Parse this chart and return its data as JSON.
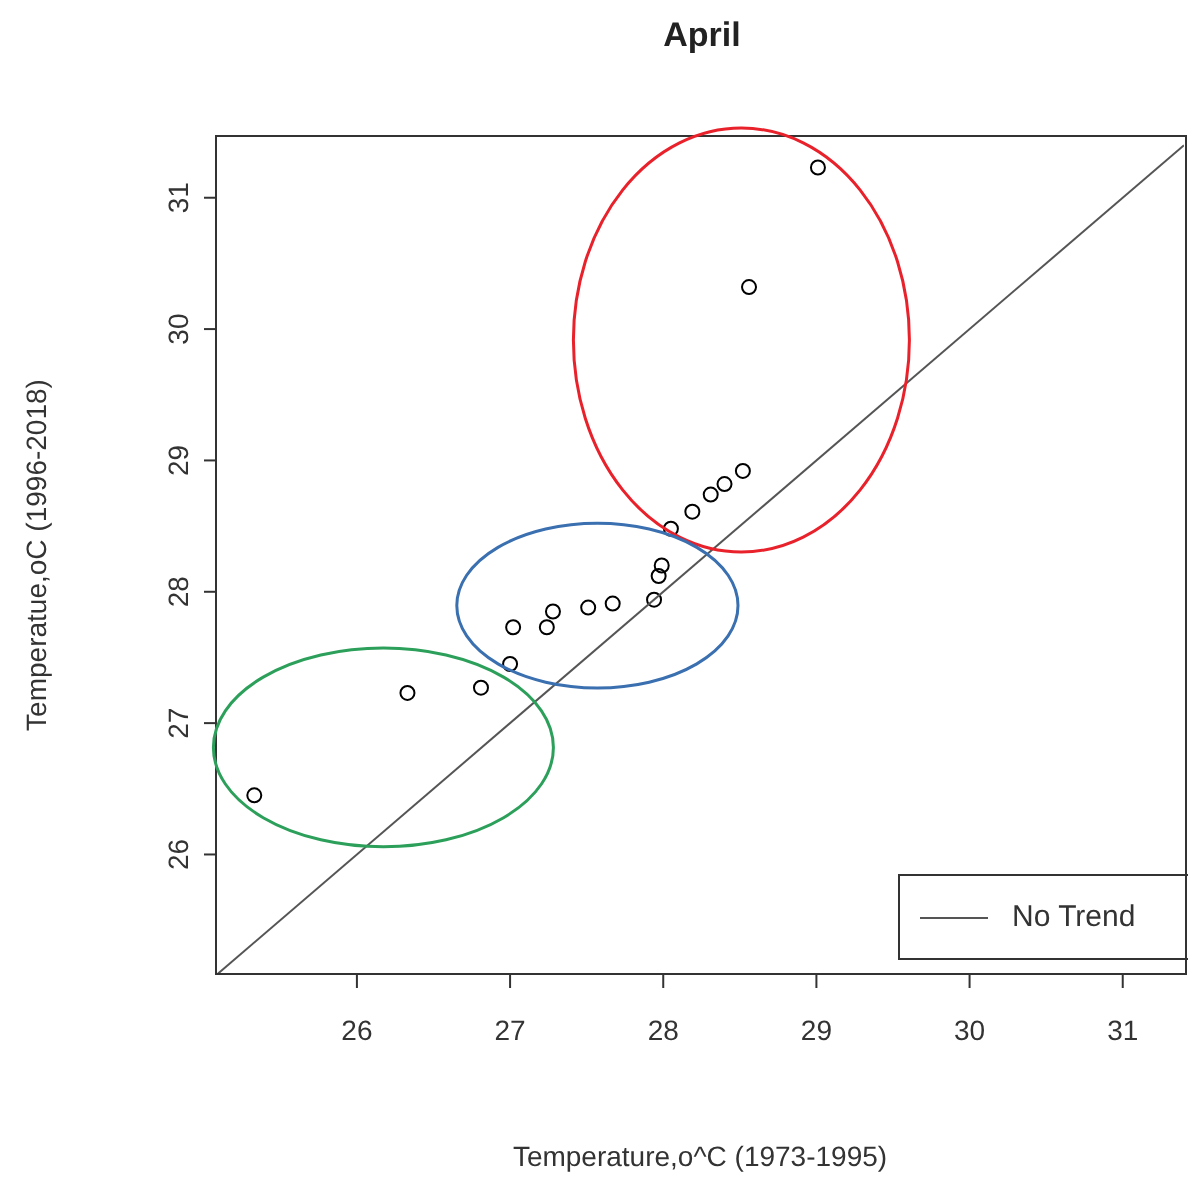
{
  "chart_data": {
    "type": "scatter",
    "title": "April",
    "xlabel": "Temperature,o^C (1973-1995)",
    "ylabel": "Temperatue,oC (1996-2018)",
    "xlim": [
      25.08,
      31.4
    ],
    "ylim": [
      25.09,
      31.47
    ],
    "xticks": [
      26,
      27,
      28,
      29,
      30,
      31
    ],
    "yticks": [
      26,
      27,
      28,
      29,
      30,
      31
    ],
    "grid": false,
    "legend": "bottom right",
    "marker": "circle",
    "series": [
      {
        "color": "#000000",
        "x": [
          25.33,
          26.33,
          26.81,
          27.0,
          27.02,
          27.24,
          27.28,
          27.51,
          27.67,
          27.94,
          27.97,
          27.99,
          28.05,
          28.19,
          28.31,
          28.4,
          28.52,
          28.56,
          29.01
        ],
        "values": [
          26.45,
          27.23,
          27.27,
          27.45,
          27.73,
          27.73,
          27.85,
          27.88,
          27.91,
          27.94,
          28.12,
          28.2,
          28.48,
          28.61,
          28.74,
          28.82,
          28.92,
          30.32,
          31.23
        ]
      },
      {
        "type": "line",
        "name": "No Trend",
        "color": "#555555",
        "marker": "none",
        "x": [
          25.09,
          31.4
        ],
        "values": [
          25.09,
          31.4
        ]
      }
    ]
  }
}
